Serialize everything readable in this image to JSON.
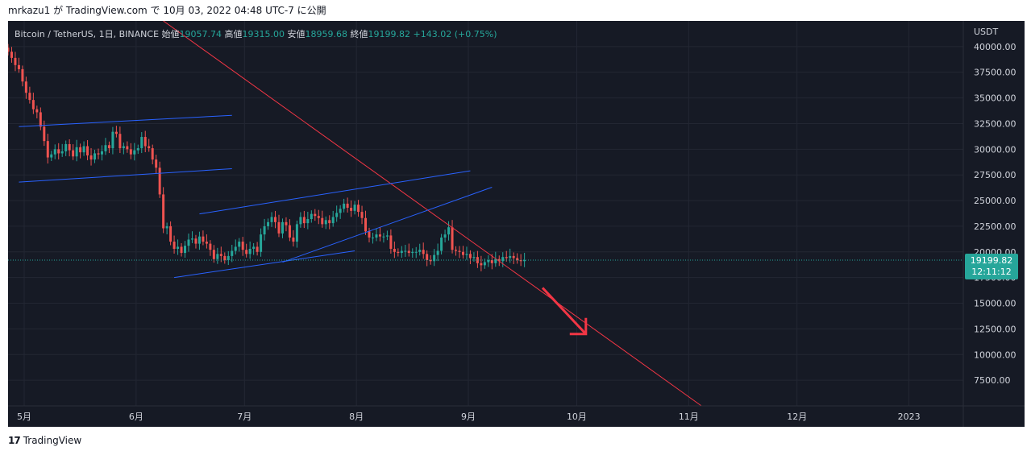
{
  "header": {
    "publish_text": "mrkazu1 が TradingView.com で 10月 03, 2022 04:48 UTC-7 に公開"
  },
  "legend": {
    "symbol": "Bitcoin / TetherUS, 1日, BINANCE",
    "open_label": "始値",
    "open_value": "19057.74",
    "high_label": "高値",
    "high_value": "19315.00",
    "low_label": "安値",
    "low_value": "18959.68",
    "close_label": "終値",
    "close_value": "19199.82",
    "change": "+143.02 (+0.75%)"
  },
  "price_axis": {
    "currency": "USDT",
    "ticks": [
      "40000.00",
      "37500.00",
      "35000.00",
      "32500.00",
      "30000.00",
      "27500.00",
      "25000.00",
      "22500.00",
      "20000.00",
      "17500.00",
      "15000.00",
      "12500.00",
      "10000.00",
      "7500.00"
    ],
    "last_price": "19199.82",
    "countdown": "12:11:12"
  },
  "time_axis": {
    "labels": [
      "5月",
      "6月",
      "7月",
      "8月",
      "9月",
      "10月",
      "11月",
      "12月",
      "2023"
    ]
  },
  "colors": {
    "background": "#161a25",
    "up": "#26a69a",
    "down": "#ef5350",
    "trendline_red": "#f23645",
    "channel_blue": "#2962ff",
    "price_badge": "#26a69a"
  },
  "chart_data": {
    "type": "candlestick",
    "symbol": "BTCUSDT",
    "interval": "1D",
    "ylim": [
      5000,
      42500
    ],
    "price_ticks": [
      40000,
      37500,
      35000,
      32500,
      30000,
      27500,
      25000,
      22500,
      20000,
      17500,
      15000,
      12500,
      10000,
      7500
    ],
    "last_close": 19199.82,
    "months": [
      "5月",
      "6月",
      "7月",
      "8月",
      "9月",
      "10月",
      "11月",
      "12月",
      "2023"
    ],
    "days_per_month_label_start": [
      0,
      31,
      61,
      92,
      123,
      153,
      184,
      214,
      245
    ],
    "series_close": [
      39500,
      38900,
      38200,
      37800,
      36600,
      35500,
      34800,
      33900,
      33600,
      32200,
      30800,
      29200,
      29500,
      30000,
      29600,
      29800,
      30500,
      29900,
      29300,
      30200,
      29700,
      30300,
      29400,
      29000,
      29600,
      29500,
      29800,
      30400,
      30100,
      31700,
      31500,
      30100,
      30300,
      30000,
      29500,
      29900,
      30100,
      31200,
      30300,
      30100,
      29000,
      28200,
      25600,
      22300,
      22500,
      21000,
      20300,
      20500,
      19900,
      20600,
      21200,
      21300,
      20800,
      21500,
      21000,
      20800,
      20200,
      19300,
      19800,
      19600,
      19200,
      19600,
      20100,
      20500,
      21000,
      20200,
      19800,
      20300,
      20500,
      20000,
      21700,
      22500,
      22900,
      23400,
      22900,
      21800,
      22900,
      22600,
      21400,
      21000,
      22700,
      23400,
      22800,
      23200,
      23700,
      23500,
      23300,
      22700,
      23100,
      22800,
      23400,
      23800,
      24200,
      24700,
      24300,
      24000,
      24600,
      23900,
      23300,
      22000,
      21400,
      21400,
      21700,
      21500,
      21500,
      21600,
      20300,
      20000,
      19900,
      20100,
      20100,
      19900,
      20000,
      20000,
      20200,
      19800,
      19200,
      19100,
      19700,
      20100,
      21400,
      21700,
      22400,
      20200,
      20100,
      20000,
      19700,
      19800,
      19400,
      19500,
      18900,
      18700,
      19000,
      19200,
      18900,
      19300,
      19100,
      19500,
      19400,
      19600,
      19400,
      19200,
      19100,
      19200
    ],
    "annotations": [
      {
        "type": "descending-trendline",
        "color": "#f23645",
        "from": {
          "day": 43,
          "price": 42500
        },
        "to": {
          "day": 192,
          "price": 5000
        }
      },
      {
        "type": "channel-upper",
        "color": "#2962ff",
        "from": {
          "day": 3,
          "price": 32200
        },
        "to": {
          "day": 62,
          "price": 33300
        }
      },
      {
        "type": "channel-lower",
        "color": "#2962ff",
        "from": {
          "day": 3,
          "price": 26800
        },
        "to": {
          "day": 62,
          "price": 28100
        }
      },
      {
        "type": "channel-upper",
        "color": "#2962ff",
        "from": {
          "day": 53,
          "price": 23700
        },
        "to": {
          "day": 128,
          "price": 27900
        }
      },
      {
        "type": "channel-lower",
        "color": "#2962ff",
        "from": {
          "day": 46,
          "price": 17500
        },
        "to": {
          "day": 96,
          "price": 20100
        }
      },
      {
        "type": "trendline",
        "color": "#2962ff",
        "from": {
          "day": 76,
          "price": 19000
        },
        "to": {
          "day": 134,
          "price": 26300
        }
      },
      {
        "type": "arrow-down",
        "color": "#f23645",
        "from": {
          "day": 148,
          "price": 16500
        },
        "to": {
          "day": 160,
          "price": 12000
        }
      }
    ]
  }
}
